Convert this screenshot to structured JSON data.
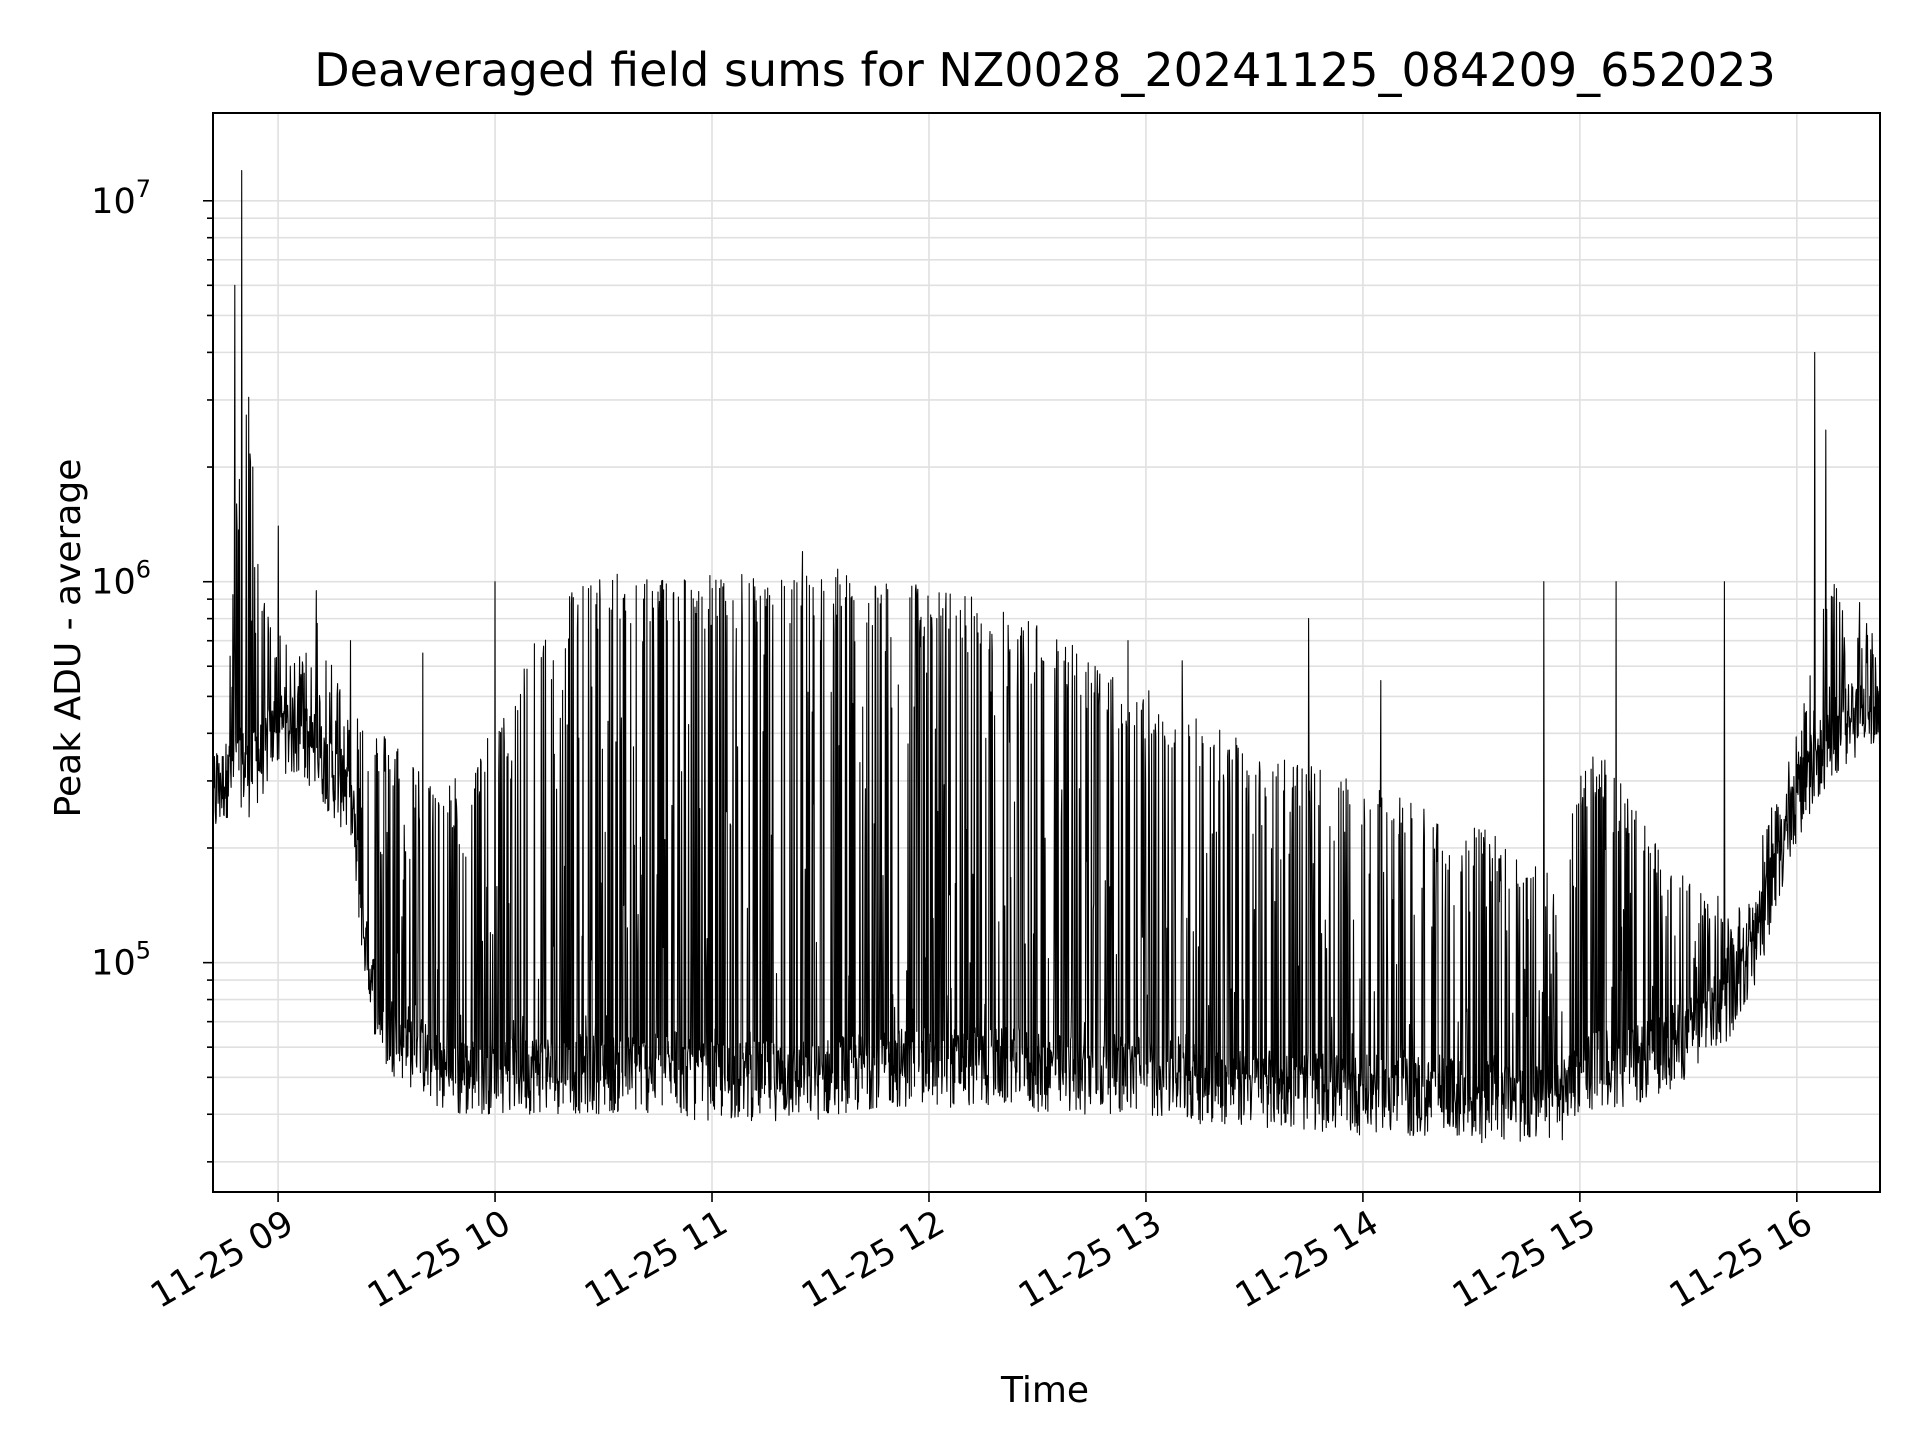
{
  "chart_data": {
    "type": "line",
    "title": "Deaveraged field sums for NZ0028_20241125_084209_652023",
    "xlabel": "Time",
    "ylabel": "Peak ADU - average",
    "yscale": "log",
    "grid": true,
    "xlim": [
      "11-25 08:42",
      "11-25 16:23"
    ],
    "ylim": [
      25000,
      17000000
    ],
    "x_tick_labels": [
      "11-25 09",
      "11-25 10",
      "11-25 11",
      "11-25 12",
      "11-25 13",
      "11-25 14",
      "11-25 15",
      "11-25 16"
    ],
    "y_tick_labels": [
      {
        "base": "10",
        "exp": "5"
      },
      {
        "base": "10",
        "exp": "6"
      },
      {
        "base": "10",
        "exp": "7"
      }
    ],
    "series": [
      {
        "color": "#000000",
        "x": [
          "11-25 08:42",
          "11-25 08:46",
          "11-25 08:50",
          "11-25 08:52",
          "11-25 08:55",
          "11-25 09:00",
          "11-25 09:05",
          "11-25 09:10",
          "11-25 09:15",
          "11-25 09:20",
          "11-25 09:25",
          "11-25 09:30",
          "11-25 09:35",
          "11-25 09:40",
          "11-25 09:45",
          "11-25 09:50",
          "11-25 09:55",
          "11-25 10:00",
          "11-25 10:05",
          "11-25 10:10",
          "11-25 10:15",
          "11-25 10:20",
          "11-25 10:25",
          "11-25 10:30",
          "11-25 10:35",
          "11-25 10:40",
          "11-25 10:45",
          "11-25 10:50",
          "11-25 10:55",
          "11-25 11:00",
          "11-25 11:05",
          "11-25 11:10",
          "11-25 11:15",
          "11-25 11:20",
          "11-25 11:25",
          "11-25 11:30",
          "11-25 11:35",
          "11-25 11:40",
          "11-25 11:45",
          "11-25 11:50",
          "11-25 11:55",
          "11-25 12:00",
          "11-25 12:05",
          "11-25 12:10",
          "11-25 12:15",
          "11-25 12:20",
          "11-25 12:25",
          "11-25 12:30",
          "11-25 12:35",
          "11-25 12:40",
          "11-25 12:45",
          "11-25 12:50",
          "11-25 12:55",
          "11-25 13:00",
          "11-25 13:05",
          "11-25 13:10",
          "11-25 13:15",
          "11-25 13:20",
          "11-25 13:25",
          "11-25 13:30",
          "11-25 13:35",
          "11-25 13:40",
          "11-25 13:45",
          "11-25 13:50",
          "11-25 13:55",
          "11-25 14:00",
          "11-25 14:05",
          "11-25 14:10",
          "11-25 14:15",
          "11-25 14:20",
          "11-25 14:25",
          "11-25 14:30",
          "11-25 14:35",
          "11-25 14:40",
          "11-25 14:45",
          "11-25 14:50",
          "11-25 14:55",
          "11-25 15:00",
          "11-25 15:05",
          "11-25 15:10",
          "11-25 15:15",
          "11-25 15:20",
          "11-25 15:25",
          "11-25 15:30",
          "11-25 15:35",
          "11-25 15:40",
          "11-25 15:45",
          "11-25 15:50",
          "11-25 15:55",
          "11-25 16:00",
          "11-25 16:05",
          "11-25 16:10",
          "11-25 16:15",
          "11-25 16:20",
          "11-25 16:23"
        ],
        "y_low": [
          250000,
          300000,
          320000,
          300000,
          330000,
          400000,
          380000,
          350000,
          300000,
          260000,
          90000,
          65000,
          60000,
          55000,
          50000,
          48000,
          50000,
          50000,
          50000,
          50000,
          50000,
          50000,
          50000,
          50000,
          50000,
          50000,
          50000,
          50000,
          48000,
          48000,
          48000,
          48000,
          48000,
          48000,
          48000,
          48000,
          50000,
          50000,
          52000,
          52000,
          52000,
          52000,
          52000,
          52000,
          52000,
          52000,
          52000,
          50000,
          50000,
          50000,
          50000,
          50000,
          50000,
          50000,
          48000,
          48000,
          47000,
          47000,
          46000,
          46000,
          46000,
          45000,
          45000,
          45000,
          44000,
          44000,
          44000,
          44000,
          43000,
          43000,
          43000,
          42000,
          42000,
          42000,
          42000,
          42000,
          42000,
          50000,
          52000,
          52000,
          52000,
          55000,
          58000,
          62000,
          68000,
          75000,
          90000,
          120000,
          180000,
          260000,
          320000,
          380000,
          420000,
          450000,
          450000
        ],
        "y_high": [
          350000,
          500000,
          3000000,
          3000000,
          1000000,
          700000,
          600000,
          1000000,
          600000,
          500000,
          400000,
          380000,
          360000,
          300000,
          280000,
          300000,
          350000,
          400000,
          450000,
          700000,
          800000,
          900000,
          1000000,
          1000000,
          1000000,
          1000000,
          1000000,
          1000000,
          1000000,
          1000000,
          1000000,
          1000000,
          1000000,
          1000000,
          1000000,
          1050000,
          1050000,
          1000000,
          1000000,
          1000000,
          950000,
          950000,
          900000,
          900000,
          850000,
          800000,
          780000,
          750000,
          700000,
          650000,
          600000,
          560000,
          520000,
          500000,
          480000,
          450000,
          420000,
          400000,
          380000,
          360000,
          350000,
          330000,
          320000,
          300000,
          290000,
          280000,
          270000,
          260000,
          250000,
          240000,
          230000,
          220000,
          210000,
          200000,
          190000,
          180000,
          180000,
          300000,
          350000,
          300000,
          250000,
          200000,
          180000,
          160000,
          150000,
          140000,
          140000,
          200000,
          300000,
          400000,
          700000,
          1000000,
          900000,
          800000,
          600000
        ],
        "spikes": [
          {
            "x": "11-25 08:50",
            "y": 12000000
          },
          {
            "x": "11-25 08:48",
            "y": 6000000
          },
          {
            "x": "11-25 08:53",
            "y": 2000000
          },
          {
            "x": "11-25 09:00",
            "y": 1400000
          },
          {
            "x": "11-25 09:20",
            "y": 700000
          },
          {
            "x": "11-25 09:40",
            "y": 650000
          },
          {
            "x": "11-25 10:00",
            "y": 1000000
          },
          {
            "x": "11-25 11:25",
            "y": 1200000
          },
          {
            "x": "11-25 12:55",
            "y": 700000
          },
          {
            "x": "11-25 13:10",
            "y": 620000
          },
          {
            "x": "11-25 13:45",
            "y": 800000
          },
          {
            "x": "11-25 14:05",
            "y": 550000
          },
          {
            "x": "11-25 14:50",
            "y": 1000000
          },
          {
            "x": "11-25 15:10",
            "y": 1000000
          },
          {
            "x": "11-25 15:40",
            "y": 1000000
          },
          {
            "x": "11-25 16:05",
            "y": 4000000
          },
          {
            "x": "11-25 16:08",
            "y": 2500000
          }
        ]
      }
    ]
  }
}
